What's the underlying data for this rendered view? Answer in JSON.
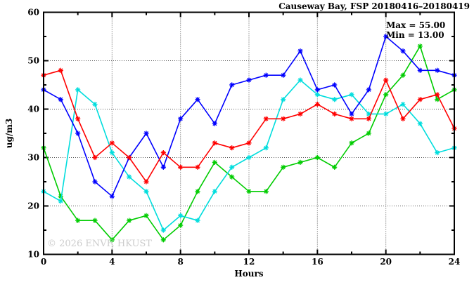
{
  "header": {
    "title": "Causeway Bay, FSP 20180416–20180419"
  },
  "annotations": {
    "max_label": "Max = 55.00",
    "min_label": "Min = 13.00"
  },
  "watermark": "© 2026 ENVF, HKUST",
  "chart_data": {
    "type": "line",
    "title": "Causeway Bay, FSP 20180416–20180419",
    "xlabel": "Hours",
    "ylabel": "ug/m3",
    "xlim": [
      0,
      24
    ],
    "ylim": [
      10,
      60
    ],
    "x_major_ticks": [
      0,
      4,
      8,
      12,
      16,
      20,
      24
    ],
    "x_minor_ticks": [
      2,
      6,
      10,
      14,
      18,
      22
    ],
    "y_major_ticks": [
      10,
      20,
      30,
      40,
      50,
      60
    ],
    "y_minor_ticks": [
      15,
      25,
      35,
      45,
      55
    ],
    "grid_x_values": [
      4,
      8,
      12,
      16,
      20
    ],
    "grid_y_values": [
      20,
      30,
      40,
      50
    ],
    "grid": true,
    "legend": "none",
    "x": [
      0,
      1,
      2,
      3,
      4,
      5,
      6,
      7,
      8,
      9,
      10,
      11,
      12,
      13,
      14,
      15,
      16,
      17,
      18,
      19,
      20,
      21,
      22,
      23,
      24
    ],
    "series": [
      {
        "name": "series-green",
        "color": "#00cc00",
        "values": [
          32,
          22,
          17,
          17,
          13,
          17,
          18,
          13,
          16,
          23,
          29,
          26,
          23,
          23,
          28,
          29,
          30,
          28,
          33,
          35,
          43,
          47,
          53,
          42,
          44
        ]
      },
      {
        "name": "series-cyan",
        "color": "#00dddd",
        "values": [
          23,
          21,
          44,
          41,
          31,
          26,
          23,
          15,
          18,
          17,
          23,
          28,
          30,
          32,
          42,
          46,
          43,
          42,
          43,
          39,
          39,
          41,
          37,
          31,
          32
        ]
      },
      {
        "name": "series-blue",
        "color": "#0000ff",
        "values": [
          44,
          42,
          35,
          25,
          22,
          30,
          35,
          28,
          38,
          42,
          37,
          45,
          46,
          47,
          47,
          52,
          44,
          45,
          39,
          44,
          55,
          52,
          48,
          48,
          47
        ]
      },
      {
        "name": "series-red",
        "color": "#ff0000",
        "values": [
          47,
          48,
          38,
          30,
          33,
          30,
          25,
          31,
          28,
          28,
          33,
          32,
          33,
          38,
          38,
          39,
          41,
          39,
          38,
          38,
          46,
          38,
          42,
          43,
          36
        ]
      }
    ],
    "stats": {
      "max": 55.0,
      "min": 13.0
    }
  }
}
